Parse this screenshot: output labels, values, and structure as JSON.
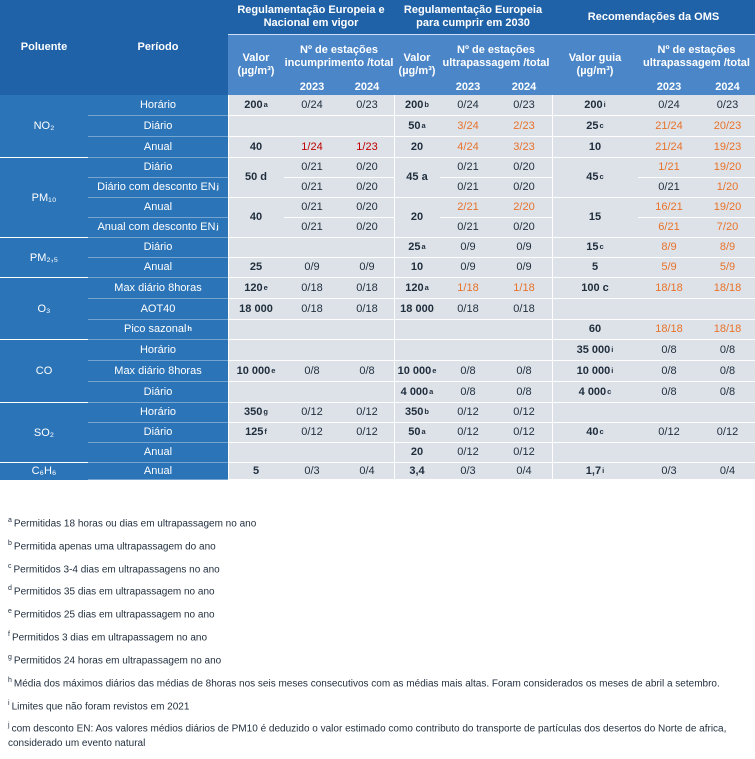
{
  "header": {
    "poluente": "Poluente",
    "periodo": "Período",
    "group1": "Regulamentação Europeia e Nacional em vigor",
    "group2": "Regulamentação Europeia para cumprir em 2030",
    "group3": "Recomendações da OMS",
    "valor": "Valor (µg/m³)",
    "valor_guia": "Valor guia (µg/m³)",
    "estacoes_incumprimento": "Nº de estações incumprimento /total",
    "estacoes_ultrapassagem": "Nº de estações ultrapassagem /total",
    "y2023": "2023",
    "y2024": "2024"
  },
  "pollutants": {
    "no2": "NO₂",
    "pm10": "PM₁₀",
    "pm25": "PM₂,₅",
    "o3": "O₃",
    "co": "CO",
    "so2": "SO₂",
    "c6h6": "C₆H₆"
  },
  "rows": [
    {
      "periodo": "Horário",
      "v1": "200",
      "s1": "a",
      "a23": "0/24",
      "a24": "0/23",
      "v2": "200",
      "s2": "b",
      "b23": "0/24",
      "b24": "0/23",
      "v3": "200",
      "s3": "i",
      "c23": "0/24",
      "c24": "0/23"
    },
    {
      "periodo": "Diário",
      "v1": "",
      "s1": "",
      "a23": "",
      "a24": "",
      "v2": "50",
      "s2": "a",
      "b23": "3/24",
      "b24": "2/23",
      "v3": "25",
      "s3": "c",
      "c23": "21/24",
      "c24": "20/23"
    },
    {
      "periodo": "Anual",
      "v1": "40",
      "s1": "",
      "a23": "1/24",
      "a24": "1/23",
      "v2": "20",
      "s2": "",
      "b23": "4/24",
      "b24": "3/23",
      "v3": "10",
      "s3": "",
      "c23": "21/24",
      "c24": "19/23"
    },
    {
      "periodo": "Diário",
      "v1": "50 d",
      "s1": "",
      "a23": "0/21",
      "a24": "0/20",
      "v2": "45 a",
      "s2": "",
      "b23": "0/21",
      "b24": "0/20",
      "v3": "45",
      "s3": "c",
      "c23": "1/21",
      "c24": "19/20"
    },
    {
      "periodo": "Diário com desconto EN",
      "ps": "j",
      "v1": "",
      "s1": "",
      "a23": "0/21",
      "a24": "0/20",
      "v2": "",
      "s2": "",
      "b23": "0/21",
      "b24": "0/20",
      "v3": "",
      "s3": "",
      "c23": "0/21",
      "c24": "1/20"
    },
    {
      "periodo": "Anual",
      "v1": "40",
      "s1": "",
      "a23": "0/21",
      "a24": "0/20",
      "v2": "20",
      "s2": "",
      "b23": "2/21",
      "b24": "2/20",
      "v3": "15",
      "s3": "",
      "c23": "16/21",
      "c24": "19/20"
    },
    {
      "periodo": "Anual com desconto EN",
      "ps": "j",
      "v1": "",
      "s1": "",
      "a23": "0/21",
      "a24": "0/20",
      "v2": "",
      "s2": "",
      "b23": "0/21",
      "b24": "0/20",
      "v3": "",
      "s3": "",
      "c23": "6/21",
      "c24": "7/20"
    },
    {
      "periodo": "Diário",
      "v1": "",
      "s1": "",
      "a23": "",
      "a24": "",
      "v2": "25",
      "s2": "a",
      "b23": "0/9",
      "b24": "0/9",
      "v3": "15",
      "s3": "c",
      "c23": "8/9",
      "c24": "8/9"
    },
    {
      "periodo": "Anual",
      "v1": "25",
      "s1": "",
      "a23": "0/9",
      "a24": "0/9",
      "v2": "10",
      "s2": "",
      "b23": "0/9",
      "b24": "0/9",
      "v3": "5",
      "s3": "",
      "c23": "5/9",
      "c24": "5/9"
    },
    {
      "periodo": "Max diário 8horas",
      "v1": "120",
      "s1": "e",
      "a23": "0/18",
      "a24": "0/18",
      "v2": "120",
      "s2": "a",
      "b23": "1/18",
      "b24": "1/18",
      "v3": "100 c",
      "s3": "",
      "c23": "18/18",
      "c24": "18/18"
    },
    {
      "periodo": "AOT40",
      "v1": "18 000",
      "s1": "",
      "a23": "0/18",
      "a24": "0/18",
      "v2": "18 000",
      "s2": "",
      "b23": "0/18",
      "b24": "0/18",
      "v3": "",
      "s3": "",
      "c23": "",
      "c24": ""
    },
    {
      "periodo": "Pico sazonal",
      "ps": "h",
      "v1": "",
      "s1": "",
      "a23": "",
      "a24": "",
      "v2": "",
      "s2": "",
      "b23": "",
      "b24": "",
      "v3": "60",
      "s3": "",
      "c23": "18/18",
      "c24": "18/18"
    },
    {
      "periodo": "Horário",
      "v1": "",
      "s1": "",
      "a23": "",
      "a24": "",
      "v2": "",
      "s2": "",
      "b23": "",
      "b24": "",
      "v3": "35 000",
      "s3": "i",
      "c23": "0/8",
      "c24": "0/8"
    },
    {
      "periodo": "Max diário 8horas",
      "v1": "10 000",
      "s1": "e",
      "a23": "0/8",
      "a24": "0/8",
      "v2": "10 000",
      "s2": "e",
      "b23": "0/8",
      "b24": "0/8",
      "v3": "10 000",
      "s3": "i",
      "c23": "0/8",
      "c24": "0/8"
    },
    {
      "periodo": "Diário",
      "v1": "",
      "s1": "",
      "a23": "",
      "a24": "",
      "v2": "4 000",
      "s2": "a",
      "b23": "0/8",
      "b24": "0/8",
      "v3": "4 000",
      "s3": "c",
      "c23": "0/8",
      "c24": "0/8"
    },
    {
      "periodo": "Horário",
      "v1": "350",
      "s1": "g",
      "a23": "0/12",
      "a24": "0/12",
      "v2": "350",
      "s2": "b",
      "b23": "0/12",
      "b24": "0/12",
      "v3": "",
      "s3": "",
      "c23": "",
      "c24": ""
    },
    {
      "periodo": "Diário",
      "v1": "125",
      "s1": "f",
      "a23": "0/12",
      "a24": "0/12",
      "v2": "50",
      "s2": "a",
      "b23": "0/12",
      "b24": "0/12",
      "v3": "40",
      "s3": "c",
      "c23": "0/12",
      "c24": "0/12"
    },
    {
      "periodo": "Anual",
      "v1": "",
      "s1": "",
      "a23": "",
      "a24": "",
      "v2": "20",
      "s2": "",
      "b23": "0/12",
      "b24": "0/12",
      "v3": "",
      "s3": "",
      "c23": "",
      "c24": ""
    },
    {
      "periodo": "Anual",
      "v1": "5",
      "s1": "",
      "a23": "0/3",
      "a24": "0/4",
      "v2": "3,4",
      "s2": "",
      "b23": "0/3",
      "b24": "0/4",
      "v3": "1,7",
      "s3": "i",
      "c23": "0/3",
      "c24": "0/4"
    }
  ],
  "notes": [
    {
      "sup": "a",
      "text": "Permitidas 18 horas ou dias em ultrapassagem no ano"
    },
    {
      "sup": "b",
      "text": "Permitida apenas uma ultrapassagem do ano"
    },
    {
      "sup": "c",
      "text": "Permitidos 3-4 dias em ultrapassagens no ano"
    },
    {
      "sup": "d",
      "text": "Permitidos 35 dias em ultrapassagem no ano"
    },
    {
      "sup": "e",
      "text": "Permitidos 25 dias em ultrapassagem no ano"
    },
    {
      "sup": "f",
      "text": "Permitidos 3 dias em ultrapassagem no ano"
    },
    {
      "sup": "g",
      "text": "Permitidos 24 horas em ultrapassagem no ano"
    },
    {
      "sup": "h",
      "text": "Média dos máximos diários das médias de 8horas nos seis meses consecutivos com as médias mais altas. Foram considerados os meses de abril a setembro."
    },
    {
      "sup": "i",
      "text": "Limites que não foram revistos em 2021"
    },
    {
      "sup": "j",
      "text": "com desconto EN: Aos valores médios diários de PM10 é deduzido o valor estimado como contributo do transporte de partículas dos desertos do Norte de africa, considerado um evento natural"
    }
  ],
  "colors": {
    "header": "#4a86c8",
    "header_dark": "#1f62a8",
    "band": "#2c74b8",
    "grey": "#dde2e8",
    "red": "#c00000",
    "orange": "#e8722a"
  }
}
